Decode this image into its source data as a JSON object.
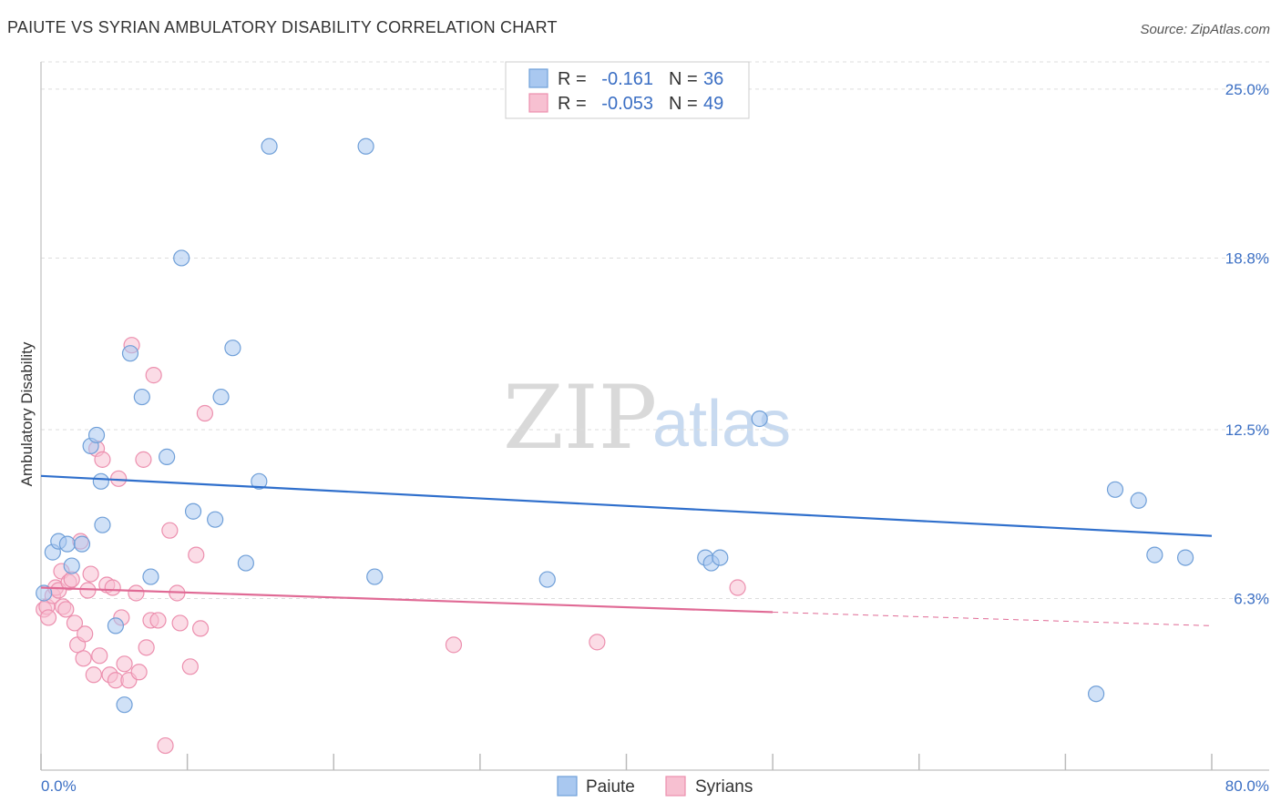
{
  "title": "PAIUTE VS SYRIAN AMBULATORY DISABILITY CORRELATION CHART",
  "source": "Source: ZipAtlas.com",
  "watermark": {
    "zip": "ZIP",
    "atlas": "atlas"
  },
  "colors": {
    "paiute_fill": "#a9c8f0",
    "paiute_stroke": "#6f9fd8",
    "paiute_line": "#2f6fcc",
    "syrian_fill": "#f7c0d1",
    "syrian_stroke": "#ec8fae",
    "syrian_line": "#e06a95",
    "accent_text": "#3b6fc4",
    "grid": "#dddddd"
  },
  "legend": {
    "rows": [
      {
        "r_label": "R =",
        "r_value": "-0.161",
        "n_label": "N =",
        "n_value": "36",
        "series": "Paiute"
      },
      {
        "r_label": "R =",
        "r_value": "-0.053",
        "n_label": "N =",
        "n_value": "49",
        "series": "Syrians"
      }
    ]
  },
  "chart_data": {
    "type": "scatter",
    "title": "PAIUTE VS SYRIAN AMBULATORY DISABILITY CORRELATION CHART",
    "xlabel": "",
    "ylabel": "Ambulatory Disability",
    "xlim": [
      0,
      80
    ],
    "ylim": [
      0,
      26
    ],
    "x_tick_labels": [
      "0.0%",
      "80.0%"
    ],
    "y_ticks": [
      6.3,
      12.5,
      18.8,
      25.0
    ],
    "y_tick_labels": [
      "6.3%",
      "12.5%",
      "18.8%",
      "25.0%"
    ],
    "grid": "horizontal dashed",
    "legend_position": "top-center",
    "series": [
      {
        "name": "Paiute",
        "trend": {
          "x": [
            0,
            80
          ],
          "y": [
            10.8,
            8.6
          ]
        },
        "points": [
          [
            0.2,
            6.5
          ],
          [
            0.8,
            8.0
          ],
          [
            1.2,
            8.4
          ],
          [
            1.8,
            8.3
          ],
          [
            2.1,
            7.5
          ],
          [
            2.8,
            8.3
          ],
          [
            3.4,
            11.9
          ],
          [
            3.8,
            12.3
          ],
          [
            4.1,
            10.6
          ],
          [
            4.2,
            9.0
          ],
          [
            5.1,
            5.3
          ],
          [
            5.7,
            2.4
          ],
          [
            6.1,
            15.3
          ],
          [
            6.9,
            13.7
          ],
          [
            7.5,
            7.1
          ],
          [
            8.6,
            11.5
          ],
          [
            9.6,
            18.8
          ],
          [
            10.4,
            9.5
          ],
          [
            11.9,
            9.2
          ],
          [
            12.3,
            13.7
          ],
          [
            13.1,
            15.5
          ],
          [
            14.0,
            7.6
          ],
          [
            14.9,
            10.6
          ],
          [
            15.6,
            22.9
          ],
          [
            22.2,
            22.9
          ],
          [
            22.8,
            7.1
          ],
          [
            34.6,
            7.0
          ],
          [
            45.4,
            7.8
          ],
          [
            45.8,
            7.6
          ],
          [
            46.4,
            7.8
          ],
          [
            49.1,
            12.9
          ],
          [
            72.1,
            2.8
          ],
          [
            73.4,
            10.3
          ],
          [
            75.0,
            9.9
          ],
          [
            76.1,
            7.9
          ],
          [
            78.2,
            7.8
          ]
        ]
      },
      {
        "name": "Syrians",
        "trend": {
          "x": [
            0,
            50
          ],
          "y": [
            6.7,
            5.8
          ]
        },
        "trend_extension": {
          "x": [
            50,
            80
          ],
          "y": [
            5.8,
            5.3
          ]
        },
        "points": [
          [
            0.2,
            5.9
          ],
          [
            0.4,
            6.0
          ],
          [
            0.5,
            5.6
          ],
          [
            0.8,
            6.4
          ],
          [
            1.0,
            6.7
          ],
          [
            1.2,
            6.6
          ],
          [
            1.4,
            7.3
          ],
          [
            1.5,
            6.0
          ],
          [
            1.7,
            5.9
          ],
          [
            1.9,
            6.9
          ],
          [
            2.1,
            7.0
          ],
          [
            2.3,
            5.4
          ],
          [
            2.5,
            4.6
          ],
          [
            2.7,
            8.4
          ],
          [
            2.9,
            4.1
          ],
          [
            3.0,
            5.0
          ],
          [
            3.2,
            6.6
          ],
          [
            3.4,
            7.2
          ],
          [
            3.6,
            3.5
          ],
          [
            3.8,
            11.8
          ],
          [
            4.0,
            4.2
          ],
          [
            4.2,
            11.4
          ],
          [
            4.5,
            6.8
          ],
          [
            4.7,
            3.5
          ],
          [
            4.9,
            6.7
          ],
          [
            5.1,
            3.3
          ],
          [
            5.3,
            10.7
          ],
          [
            5.5,
            5.6
          ],
          [
            5.7,
            3.9
          ],
          [
            6.0,
            3.3
          ],
          [
            6.2,
            15.6
          ],
          [
            6.5,
            6.5
          ],
          [
            6.7,
            3.6
          ],
          [
            7.0,
            11.4
          ],
          [
            7.2,
            4.5
          ],
          [
            7.5,
            5.5
          ],
          [
            7.7,
            14.5
          ],
          [
            8.0,
            5.5
          ],
          [
            8.5,
            0.9
          ],
          [
            8.8,
            8.8
          ],
          [
            9.3,
            6.5
          ],
          [
            9.5,
            5.4
          ],
          [
            10.2,
            3.8
          ],
          [
            10.6,
            7.9
          ],
          [
            10.9,
            5.2
          ],
          [
            11.2,
            13.1
          ],
          [
            28.2,
            4.6
          ],
          [
            38.0,
            4.7
          ],
          [
            47.6,
            6.7
          ]
        ]
      }
    ]
  }
}
